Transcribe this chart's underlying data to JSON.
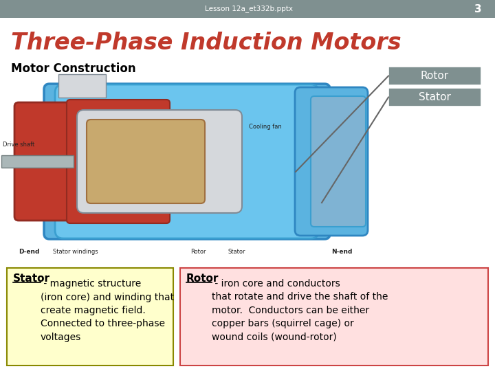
{
  "header_bg": "#7f9090",
  "header_text": "Lesson 12a_et332b.pptx",
  "header_page": "3",
  "header_text_color": "#ffffff",
  "slide_bg": "#ffffff",
  "title_text": "Three-Phase Induction Motors",
  "title_color": "#c0392b",
  "subtitle_text": "Motor Construction",
  "subtitle_color": "#000000",
  "rotor_label": "Rotor",
  "stator_label": "Stator",
  "label_box_bg": "#7f9090",
  "label_box_text_color": "#ffffff",
  "stator_box_bg": "#ffffcc",
  "stator_box_border": "#888800",
  "stator_box_title": "Stator",
  "stator_box_body": " - magnetic structure\n(iron core) and winding that\ncreate magnetic field.\nConnected to three-phase\nvoltages",
  "rotor_box_bg": "#ffe0e0",
  "rotor_box_border": "#cc4444",
  "rotor_box_title": "Rotor",
  "rotor_box_body": " - iron core and conductors\nthat rotate and drive the shaft of the\nmotor.  Conductors can be either\ncopper bars (squirrel cage) or\nwound coils (wound-rotor)"
}
